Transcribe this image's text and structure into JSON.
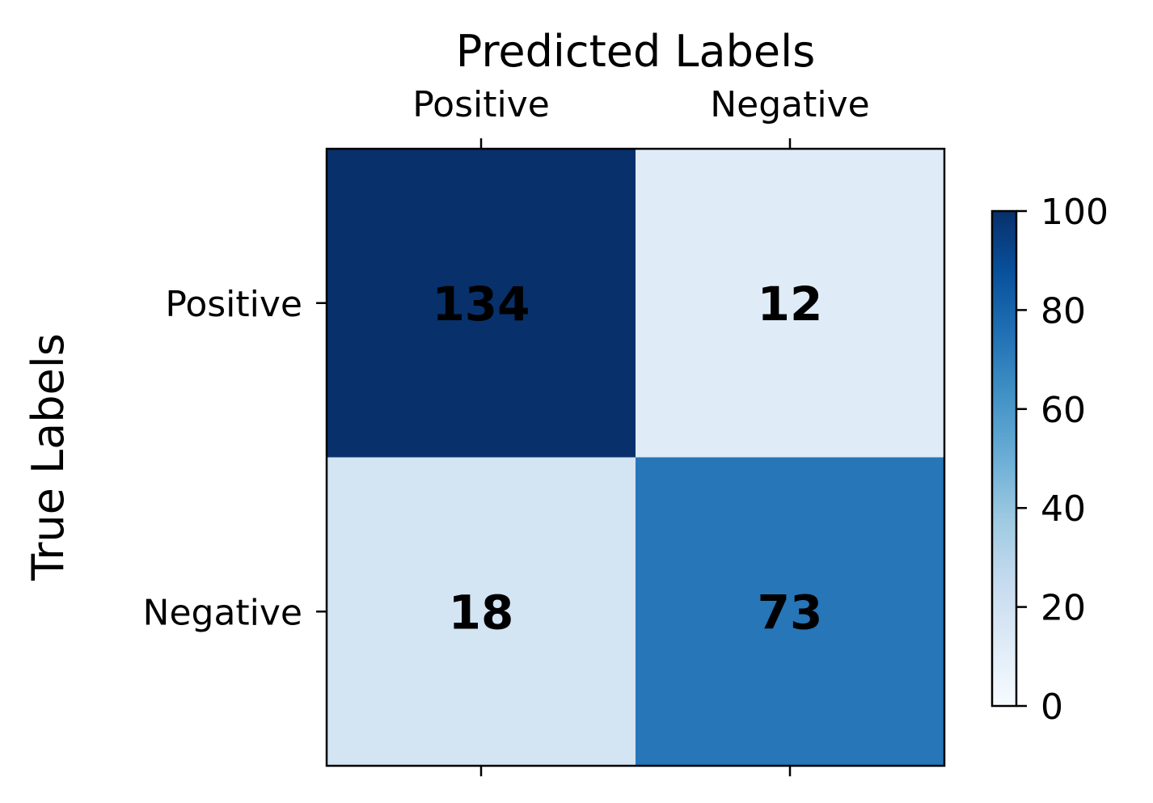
{
  "chart_data": {
    "type": "heatmap",
    "title": "",
    "xlabel": "Predicted Labels",
    "ylabel": "True Labels",
    "x_categories": [
      "Positive",
      "Negative"
    ],
    "y_categories": [
      "Positive",
      "Negative"
    ],
    "values": [
      [
        134,
        12
      ],
      [
        18,
        73
      ]
    ],
    "colorbar": {
      "range": [
        0,
        100
      ],
      "ticks": [
        "0",
        "20",
        "40",
        "60",
        "80",
        "100"
      ],
      "colormap": "Blues"
    },
    "x_axis_position": "top",
    "grid": false
  }
}
